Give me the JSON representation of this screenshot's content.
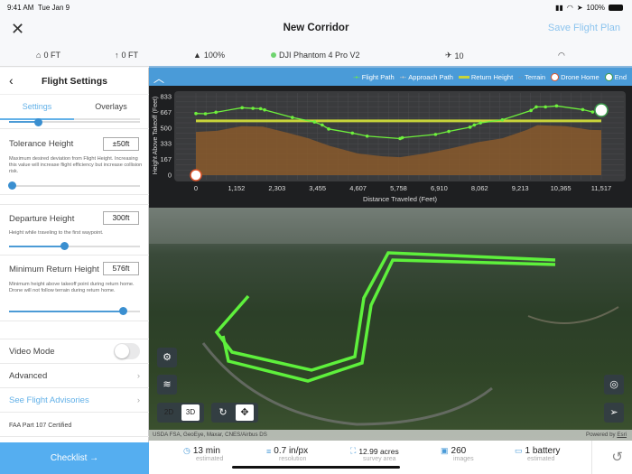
{
  "status_bar": {
    "time": "9:41 AM",
    "date": "Tue Jan 9",
    "battery": "100%"
  },
  "header": {
    "title": "New Corridor",
    "save_label": "Save Flight Plan"
  },
  "telemetry": {
    "home_alt": "0 FT",
    "altitude": "0 FT",
    "battery": "100%",
    "drone": "DJI Phantom 4 Pro V2",
    "satellites": "10",
    "drone_status_color": "#6fd46f"
  },
  "panel": {
    "title": "Flight Settings",
    "tabs": [
      {
        "label": "Settings",
        "active": true
      },
      {
        "label": "Overlays",
        "active": false
      }
    ],
    "settings": [
      {
        "label": "Tolerance Height",
        "value": "±50ft",
        "description": "Maximum desired deviation from Flight Height. Increasing this value will increase flight efficiency but increase collision risk.",
        "slider": 0.02
      },
      {
        "label": "Departure Height",
        "value": "300ft",
        "description": "Height while traveling to the first waypoint.",
        "slider": 0.42
      },
      {
        "label": "Minimum Return Height",
        "value": "576ft",
        "description": "Minimum height above takeoff point during return home. Drone will not follow terrain during return home.",
        "slider": 0.87
      }
    ],
    "video_mode": {
      "label": "Video Mode",
      "on": false
    },
    "advanced": "Advanced",
    "advisories": "See Flight Advisories",
    "faa": "FAA Part 107 Certified",
    "checklist": "Checklist →"
  },
  "legend": {
    "flight_path": "Flight Path",
    "approach_path": "Approach Path",
    "return_height": "Return Height",
    "terrain": "Terrain",
    "drone_home": "Drone Home",
    "end": "End"
  },
  "chart_data": {
    "type": "line",
    "xlabel": "Distance Traveled (Feet)",
    "ylabel": "Height Above Takeoff (Feet)",
    "xticks": [
      "0",
      "1,152",
      "2,303",
      "3,455",
      "4,607",
      "5,758",
      "6,910",
      "8,062",
      "9,213",
      "10,365",
      "11,517"
    ],
    "yticks": [
      "0",
      "167",
      "333",
      "500",
      "667",
      "833"
    ],
    "xlim": [
      0,
      11517
    ],
    "ylim": [
      0,
      833
    ],
    "grid": true,
    "legend": "top-right",
    "series": [
      {
        "name": "Flight Path",
        "color": "#6ef03c",
        "points": [
          [
            0,
            654
          ],
          [
            271,
            651
          ],
          [
            569,
            667
          ],
          [
            1313,
            715
          ],
          [
            1619,
            708
          ],
          [
            1838,
            705
          ],
          [
            1951,
            692
          ],
          [
            2739,
            612
          ],
          [
            3369,
            564
          ],
          [
            3588,
            532
          ],
          [
            3771,
            490
          ],
          [
            4445,
            446
          ],
          [
            4865,
            414
          ],
          [
            5801,
            388
          ],
          [
            5863,
            397
          ],
          [
            6808,
            432
          ],
          [
            7184,
            464
          ],
          [
            7788,
            509
          ],
          [
            7910,
            532
          ],
          [
            8085,
            554
          ],
          [
            8706,
            586
          ],
          [
            9520,
            686
          ],
          [
            9669,
            724
          ],
          [
            9931,
            724
          ],
          [
            10246,
            734
          ],
          [
            10990,
            695
          ],
          [
            11270,
            670
          ]
        ]
      },
      {
        "name": "Return Height",
        "color": "#c8d43a",
        "value": 576
      },
      {
        "name": "Terrain",
        "color": "#8a5a2b",
        "points": [
          [
            0,
            458
          ],
          [
            600,
            470
          ],
          [
            1300,
            520
          ],
          [
            1900,
            515
          ],
          [
            2600,
            450
          ],
          [
            3200,
            390
          ],
          [
            3800,
            310
          ],
          [
            4600,
            230
          ],
          [
            5300,
            200
          ],
          [
            5800,
            190
          ],
          [
            6500,
            230
          ],
          [
            7200,
            280
          ],
          [
            8000,
            350
          ],
          [
            8700,
            390
          ],
          [
            9400,
            480
          ],
          [
            9700,
            530
          ],
          [
            10500,
            520
          ],
          [
            11200,
            480
          ],
          [
            11517,
            478
          ]
        ]
      }
    ]
  },
  "map": {
    "mode_2d": "2D",
    "mode_3d": "3D",
    "active_mode": "3D",
    "attribution": "USDA FSA, GeoEye, Maxar, CNES/Airbus DS",
    "powered": "Powered by ",
    "esri": "Esri"
  },
  "stats": [
    {
      "value": "13 min",
      "label": "estimated",
      "icon": "clock-icon"
    },
    {
      "value": "0.7 in/px",
      "label": "resolution",
      "icon": "resolution-icon"
    },
    {
      "value": "12.99 acres",
      "label": "survey area",
      "icon": "area-icon"
    },
    {
      "value": "260",
      "label": "images",
      "icon": "image-icon"
    },
    {
      "value": "1 battery",
      "label": "estimated",
      "icon": "battery-icon"
    }
  ]
}
